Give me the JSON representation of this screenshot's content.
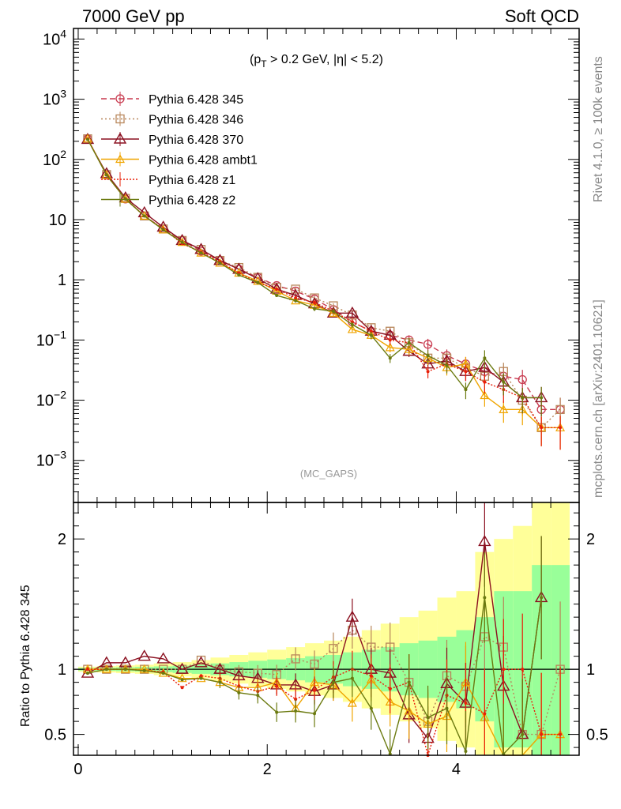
{
  "header": {
    "left": "7000 GeV pp",
    "right": "Soft QCD"
  },
  "annotation": {
    "cut_text": "(p_T > 0.2 GeV, |η| < 5.2)",
    "cut_prefix": "(p",
    "cut_sub": "T",
    "cut_suffix": " > 0.2 GeV, |η| < 5.2)"
  },
  "watermark": "(MC_GAPS)",
  "side_labels": {
    "top": "Rivet 4.1.0, ≥ 100k events",
    "bottom": "mcplots.cern.ch [arXiv:2401.10621]"
  },
  "ratio_ylabel": "Ratio to Pythia 6.428 345",
  "colors": {
    "345": "#c8394e",
    "346": "#b8865a",
    "370": "#8b1020",
    "ambt1": "#f0a500",
    "z1": "#e8200a",
    "z2": "#6b7a10",
    "band_outer": "#ffff99",
    "band_inner": "#99ff99"
  },
  "chart_data": [
    {
      "type": "line",
      "title": "",
      "xlabel": "",
      "ylabel": "",
      "yscale": "log",
      "xlim": [
        -0.05,
        5.3
      ],
      "ylim": [
        0.0002,
        15000
      ],
      "x_ticks": [
        0,
        2,
        4
      ],
      "y_tick_labels": [
        "10^4",
        "10^3",
        "10^2",
        "10",
        "1",
        "10^-1",
        "10^-2",
        "10^-3"
      ],
      "x": [
        0.1,
        0.3,
        0.5,
        0.7,
        0.9,
        1.1,
        1.3,
        1.5,
        1.7,
        1.9,
        2.1,
        2.3,
        2.5,
        2.7,
        2.9,
        3.1,
        3.3,
        3.5,
        3.7,
        3.9,
        4.1,
        4.3,
        4.5,
        4.7,
        4.9,
        5.1
      ],
      "series": [
        {
          "key": "345",
          "name": "Pythia 6.428 345",
          "marker": "circle",
          "dash": "7,4",
          "values": [
            220,
            55,
            22,
            11.5,
            7,
            4.5,
            3.0,
            2.1,
            1.5,
            1.1,
            0.8,
            0.65,
            0.48,
            0.32,
            0.2,
            0.14,
            0.12,
            0.1,
            0.085,
            0.055,
            0.04,
            0.03,
            0.025,
            0.022,
            0.007,
            0.007
          ]
        },
        {
          "key": "346",
          "name": "Pythia 6.428 346",
          "marker": "square",
          "dash": "2,3",
          "values": [
            220,
            56,
            22.5,
            11.5,
            7,
            4.5,
            3.2,
            2.1,
            1.6,
            1.1,
            0.75,
            0.7,
            0.5,
            0.37,
            0.26,
            0.16,
            0.14,
            0.09,
            0.05,
            0.05,
            0.035,
            0.025,
            0.03,
            0.01,
            0.0035,
            0.007
          ]
        },
        {
          "key": "370",
          "name": "Pythia 6.428 370",
          "marker": "triangle",
          "dash": "",
          "values": [
            215,
            58,
            23,
            13,
            7.5,
            4.5,
            3.2,
            2.1,
            1.5,
            1.05,
            0.7,
            0.55,
            0.4,
            0.28,
            0.28,
            0.14,
            0.12,
            0.065,
            0.04,
            0.045,
            0.03,
            0.035,
            0.02,
            0.011,
            0.011,
            null
          ]
        },
        {
          "key": "ambt1",
          "name": "Pythia 6.428 ambt1",
          "marker": "triangle-small",
          "dash": "",
          "values": [
            220,
            55,
            22,
            11.5,
            6.8,
            4.2,
            2.8,
            1.9,
            1.3,
            0.95,
            0.65,
            0.45,
            0.38,
            0.28,
            0.15,
            0.12,
            0.075,
            0.07,
            0.05,
            0.035,
            0.04,
            0.012,
            0.007,
            0.007,
            0.0035,
            0.0035
          ]
        },
        {
          "key": "z1",
          "name": "Pythia 6.428 z1",
          "marker": "dot",
          "dash": "2,2",
          "values": [
            220,
            55,
            22,
            11.5,
            7,
            4.0,
            2.9,
            2.0,
            1.3,
            0.9,
            0.7,
            0.5,
            0.42,
            0.3,
            0.2,
            0.14,
            0.1,
            0.09,
            0.03,
            0.04,
            0.03,
            0.02,
            0.015,
            0.011,
            0.0035,
            0.0035
          ]
        },
        {
          "key": "z2",
          "name": "Pythia 6.428 z2",
          "marker": "dot",
          "dash": "",
          "values": [
            215,
            55,
            22,
            11.5,
            6.8,
            4.2,
            2.8,
            1.9,
            1.2,
            0.9,
            0.55,
            0.45,
            0.33,
            0.3,
            0.18,
            0.12,
            0.05,
            0.09,
            0.055,
            0.038,
            0.015,
            0.05,
            0.02,
            0.011,
            0.011,
            null
          ]
        }
      ]
    },
    {
      "type": "line",
      "title": "",
      "xlabel": "",
      "ylabel": "Ratio to Pythia 6.428 345",
      "xlim": [
        -0.05,
        5.3
      ],
      "ylim": [
        0.34,
        2.28
      ],
      "x_ticks": [
        0,
        2,
        4
      ],
      "y_ticks": [
        0.5,
        1,
        2
      ],
      "x": [
        0.1,
        0.3,
        0.5,
        0.7,
        0.9,
        1.1,
        1.3,
        1.5,
        1.7,
        1.9,
        2.1,
        2.3,
        2.5,
        2.7,
        2.9,
        3.1,
        3.3,
        3.5,
        3.7,
        3.9,
        4.1,
        4.3,
        4.5,
        4.7,
        4.9,
        5.1
      ],
      "bands": {
        "inner_halfwidth": [
          0.01,
          0.012,
          0.015,
          0.018,
          0.022,
          0.028,
          0.035,
          0.045,
          0.055,
          0.065,
          0.075,
          0.085,
          0.1,
          0.11,
          0.13,
          0.15,
          0.17,
          0.2,
          0.22,
          0.25,
          0.3,
          0.4,
          0.6,
          0.6,
          0.8,
          0.8
        ],
        "outer_halfwidth": [
          0.02,
          0.025,
          0.03,
          0.035,
          0.045,
          0.055,
          0.07,
          0.09,
          0.11,
          0.13,
          0.15,
          0.17,
          0.2,
          0.22,
          0.25,
          0.3,
          0.35,
          0.4,
          0.45,
          0.55,
          0.6,
          0.9,
          1.0,
          1.1,
          1.3,
          1.3
        ]
      },
      "series": [
        {
          "key": "346",
          "name": "Pythia 6.428 346",
          "marker": "square",
          "dash": "2,3",
          "values": [
            1.0,
            1.0,
            1.0,
            1.0,
            1.0,
            1.0,
            1.07,
            1.0,
            0.98,
            0.97,
            0.96,
            1.08,
            1.04,
            1.16,
            1.3,
            1.17,
            1.17,
            0.9,
            0.6,
            0.95,
            0.87,
            1.25,
            1.17,
            0.5,
            0.5,
            1.0
          ]
        },
        {
          "key": "370",
          "name": "Pythia 6.428 370",
          "marker": "triangle",
          "dash": "",
          "values": [
            0.97,
            1.05,
            1.05,
            1.1,
            1.08,
            1.0,
            1.05,
            1.0,
            0.95,
            0.93,
            0.88,
            0.88,
            0.83,
            0.88,
            1.4,
            1.0,
            0.97,
            0.65,
            0.47,
            0.89,
            0.74,
            1.98,
            0.87,
            0.5,
            1.55,
            null
          ]
        },
        {
          "key": "ambt1",
          "name": "Pythia 6.428 ambt1",
          "marker": "triangle-small",
          "dash": "",
          "values": [
            1.0,
            1.0,
            1.0,
            1.0,
            0.97,
            0.93,
            0.93,
            0.9,
            0.86,
            0.86,
            0.9,
            0.7,
            0.9,
            0.88,
            0.74,
            0.92,
            0.75,
            0.68,
            0.58,
            0.64,
            0.9,
            0.63,
            0.28,
            0.32,
            0.5,
            0.5
          ]
        },
        {
          "key": "z1",
          "name": "Pythia 6.428 z1",
          "marker": "dot",
          "dash": "2,2",
          "values": [
            1.0,
            1.0,
            1.0,
            0.99,
            0.98,
            0.86,
            0.95,
            0.93,
            0.87,
            0.83,
            0.87,
            0.77,
            0.84,
            0.94,
            1.0,
            0.95,
            0.85,
            0.9,
            0.34,
            0.8,
            0.74,
            0.66,
            1.0,
            1.0,
            0.5,
            0.5
          ]
        },
        {
          "key": "z2",
          "name": "Pythia 6.428 z2",
          "marker": "dot",
          "dash": "",
          "values": [
            0.97,
            1.0,
            1.0,
            0.99,
            0.97,
            0.92,
            0.93,
            0.9,
            0.82,
            0.8,
            0.67,
            0.68,
            0.66,
            0.9,
            0.93,
            0.7,
            0.35,
            0.9,
            0.63,
            0.7,
            0.37,
            1.55,
            0.35,
            0.5,
            1.55,
            null
          ]
        }
      ]
    }
  ]
}
